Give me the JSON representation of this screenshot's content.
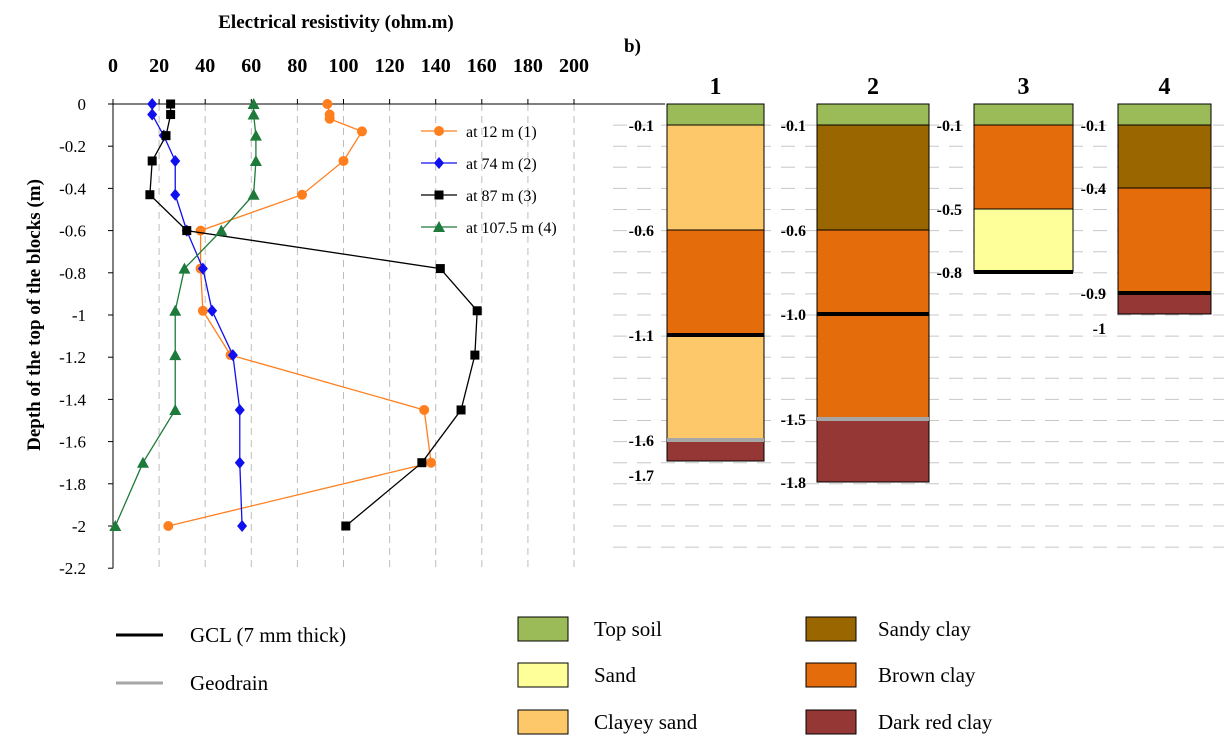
{
  "chart_data": [
    {
      "type": "line",
      "title": "",
      "xlabel": "Electrical resistivity (ohm.m)",
      "ylabel": "Depth of the top of the blocks (m)",
      "xlim": [
        0,
        200
      ],
      "ylim": [
        -2.2,
        0
      ],
      "x_ticks": [
        "0",
        "20",
        "40",
        "60",
        "80",
        "100",
        "120",
        "140",
        "160",
        "180",
        "200"
      ],
      "y_ticks": [
        "0",
        "-0.2",
        "-0.4",
        "-0.6",
        "-0.8",
        "-1",
        "-1.2",
        "-1.4",
        "-1.6",
        "-1.8",
        "-2",
        "-2.2"
      ],
      "x_axis_position": "top",
      "grid": "vertical dashed",
      "legend_position": "top-right",
      "series": [
        {
          "name": "at 12 m (1)",
          "color": "#ff7f1e",
          "marker": "circle",
          "points": [
            [
              93,
              0
            ],
            [
              94,
              -0.05
            ],
            [
              94,
              -0.07
            ],
            [
              108,
              -0.13
            ],
            [
              100,
              -0.27
            ],
            [
              82,
              -0.43
            ],
            [
              38,
              -0.6
            ],
            [
              38,
              -0.78
            ],
            [
              39,
              -0.98
            ],
            [
              51,
              -1.19
            ],
            [
              135,
              -1.45
            ],
            [
              138,
              -1.7
            ],
            [
              24,
              -2.0
            ]
          ]
        },
        {
          "name": "at 74 m (2)",
          "color": "#1010ee",
          "marker": "diamond",
          "points": [
            [
              17,
              0
            ],
            [
              17,
              -0.05
            ],
            [
              22,
              -0.15
            ],
            [
              27,
              -0.27
            ],
            [
              27,
              -0.43
            ],
            [
              32,
              -0.6
            ],
            [
              39,
              -0.78
            ],
            [
              43,
              -0.98
            ],
            [
              52,
              -1.19
            ],
            [
              55,
              -1.45
            ],
            [
              55,
              -1.7
            ],
            [
              56,
              -2.0
            ]
          ]
        },
        {
          "name": "at 87 m (3)",
          "color": "#000000",
          "marker": "square",
          "points": [
            [
              25,
              0
            ],
            [
              25,
              -0.05
            ],
            [
              23,
              -0.15
            ],
            [
              17,
              -0.27
            ],
            [
              16,
              -0.43
            ],
            [
              32,
              -0.6
            ],
            [
              142,
              -0.78
            ],
            [
              158,
              -0.98
            ],
            [
              157,
              -1.19
            ],
            [
              151,
              -1.45
            ],
            [
              134,
              -1.7
            ],
            [
              101,
              -2.0
            ]
          ]
        },
        {
          "name": "at 107.5 m (4)",
          "color": "#1d7a3a",
          "marker": "triangle",
          "points": [
            [
              61,
              0
            ],
            [
              61,
              -0.05
            ],
            [
              62,
              -0.15
            ],
            [
              62,
              -0.27
            ],
            [
              61,
              -0.43
            ],
            [
              47,
              -0.6
            ],
            [
              31,
              -0.78
            ],
            [
              27,
              -0.98
            ],
            [
              27,
              -1.19
            ],
            [
              27,
              -1.45
            ],
            [
              13,
              -1.7
            ],
            [
              1,
              -2.0
            ]
          ]
        }
      ]
    },
    {
      "type": "stacked-column",
      "panel_label": "b)",
      "columns": [
        {
          "name": "1",
          "depth_labels": [
            "-0.1",
            "-0.6",
            "-1.1",
            "-1.6",
            "-1.7"
          ],
          "layers": [
            {
              "material": "Top soil",
              "top": 0,
              "bottom": -0.1
            },
            {
              "material": "Clayey sand",
              "top": -0.1,
              "bottom": -0.6
            },
            {
              "material": "Brown clay",
              "top": -0.6,
              "bottom": -1.1
            },
            {
              "material": "Clayey sand",
              "top": -1.1,
              "bottom": -1.6
            },
            {
              "material": "Dark red clay",
              "top": -1.6,
              "bottom": -1.7
            }
          ],
          "barriers": [
            {
              "type": "GCL",
              "depth": -1.1
            },
            {
              "type": "Geodrain",
              "depth": -1.6
            }
          ]
        },
        {
          "name": "2",
          "depth_labels": [
            "-0.1",
            "-0.6",
            "-1.0",
            "-1.5",
            "-1.8"
          ],
          "layers": [
            {
              "material": "Top soil",
              "top": 0,
              "bottom": -0.1
            },
            {
              "material": "Sandy clay",
              "top": -0.1,
              "bottom": -0.6
            },
            {
              "material": "Brown clay",
              "top": -0.6,
              "bottom": -1.0
            },
            {
              "material": "Brown clay",
              "top": -1.0,
              "bottom": -1.5
            },
            {
              "material": "Dark red clay",
              "top": -1.5,
              "bottom": -1.8
            }
          ],
          "barriers": [
            {
              "type": "GCL",
              "depth": -1.0
            },
            {
              "type": "Geodrain",
              "depth": -1.5
            }
          ]
        },
        {
          "name": "3",
          "depth_labels": [
            "-0.1",
            "-0.5",
            "-0.8"
          ],
          "layers": [
            {
              "material": "Top soil",
              "top": 0,
              "bottom": -0.1
            },
            {
              "material": "Brown clay",
              "top": -0.1,
              "bottom": -0.5
            },
            {
              "material": "Sand",
              "top": -0.5,
              "bottom": -0.8
            }
          ],
          "barriers": [
            {
              "type": "GCL",
              "depth": -0.8
            }
          ]
        },
        {
          "name": "4",
          "depth_labels": [
            "-0.1",
            "-0.4",
            "-0.9",
            "-1"
          ],
          "layers": [
            {
              "material": "Top soil",
              "top": 0,
              "bottom": -0.1
            },
            {
              "material": "Sandy clay",
              "top": -0.1,
              "bottom": -0.4
            },
            {
              "material": "Brown clay",
              "top": -0.4,
              "bottom": -0.9
            },
            {
              "material": "Dark red clay",
              "top": -0.9,
              "bottom": -1.0
            }
          ],
          "barriers": [
            {
              "type": "GCL",
              "depth": -0.9
            }
          ]
        }
      ]
    }
  ],
  "legend": {
    "lines": [
      {
        "label": "GCL (7 mm thick)",
        "color": "#000000"
      },
      {
        "label": "Geodrain",
        "color": "#a6a6a6"
      }
    ],
    "materials": [
      {
        "label": "Top soil",
        "color": "#9bbb59"
      },
      {
        "label": "Sand",
        "color": "#ffff99"
      },
      {
        "label": "Clayey sand",
        "color": "#fcc86a"
      },
      {
        "label": "Sandy clay",
        "color": "#996600"
      },
      {
        "label": "Brown clay",
        "color": "#e46c0a"
      },
      {
        "label": "Dark red clay",
        "color": "#953735"
      }
    ]
  }
}
